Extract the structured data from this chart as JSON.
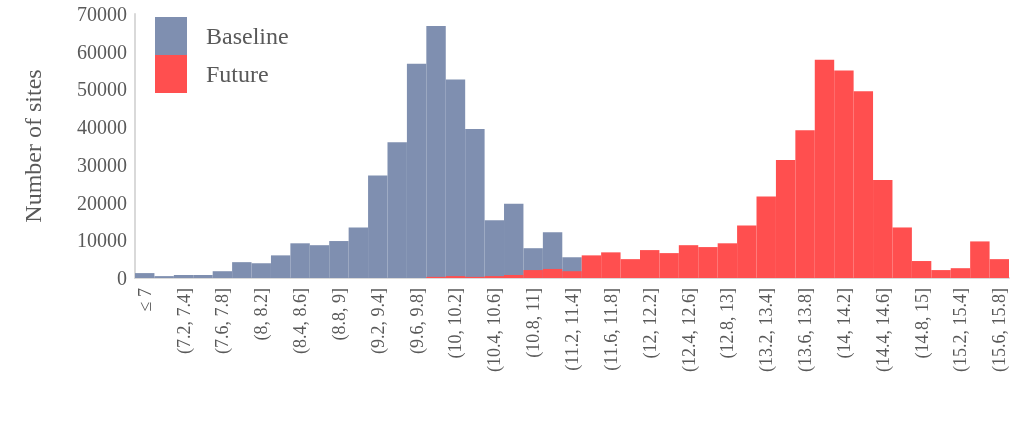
{
  "chart_data": {
    "type": "bar",
    "ylabel": "Number of sites",
    "categories": [
      "≤ 7",
      null,
      "(7.2, 7.4]",
      null,
      "(7.6, 7.8]",
      null,
      "(8, 8.2]",
      null,
      "(8.4, 8.6]",
      null,
      "(8.8, 9]",
      null,
      "(9.2, 9.4]",
      null,
      "(9.6, 9.8]",
      null,
      "(10, 10.2]",
      null,
      "(10.4, 10.6]",
      null,
      "(10.8, 11]",
      null,
      "(11.2, 11.4]",
      null,
      "(11.6, 11.8]",
      null,
      "(12, 12.2]",
      null,
      "(12.4, 12.6]",
      null,
      "(12.8, 13]",
      null,
      "(13.2, 13.4]",
      null,
      "(13.6, 13.8]",
      null,
      "(14, 14.2]",
      null,
      "(14.4, 14.6]",
      null,
      "(14.8, 15]",
      null,
      "(15.2, 15.4]",
      null,
      "(15.6, 15.8]"
    ],
    "series": [
      {
        "name": "Baseline",
        "color": "#7f8fb0",
        "values": [
          1300,
          500,
          800,
          800,
          1800,
          4200,
          3900,
          6000,
          9200,
          8700,
          9800,
          13400,
          27200,
          36000,
          56800,
          66800,
          52600,
          39500,
          15300,
          19700,
          7900,
          12100,
          5500,
          null,
          null,
          null,
          null,
          null,
          null,
          null,
          null,
          null,
          null,
          null,
          null,
          null,
          null,
          null,
          null,
          null,
          null,
          null,
          null,
          null,
          null
        ]
      },
      {
        "name": "Future",
        "color": "#ff4f4f",
        "values": [
          null,
          null,
          null,
          null,
          null,
          null,
          null,
          null,
          null,
          null,
          null,
          null,
          null,
          null,
          null,
          300,
          500,
          300,
          500,
          800,
          2100,
          2400,
          1800,
          6000,
          6800,
          5000,
          7400,
          6600,
          8700,
          8200,
          9200,
          13900,
          21600,
          31300,
          39200,
          57900,
          55000,
          49500,
          26000,
          13400,
          4500,
          2100,
          2600,
          9700,
          5000
        ]
      }
    ],
    "ylim": [
      0,
      70000
    ],
    "yticks": [
      0,
      10000,
      20000,
      30000,
      40000,
      50000,
      60000,
      70000
    ],
    "grid": false,
    "legend": "top left"
  }
}
